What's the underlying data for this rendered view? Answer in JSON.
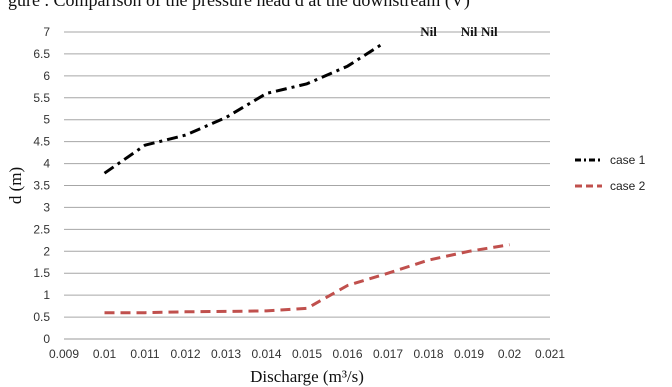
{
  "caption_fragment": "gure . Comparison of the pressure head d at the downstream (V)",
  "chart_data": {
    "type": "line",
    "xlabel": "Discharge (m³/s)",
    "ylabel": "d (m)",
    "xlim": [
      0.009,
      0.021
    ],
    "ylim": [
      0,
      7
    ],
    "x_ticks": [
      "0.009",
      "0.01",
      "0.011",
      "0.012",
      "0.013",
      "0.014",
      "0.015",
      "0.016",
      "0.017",
      "0.018",
      "0.019",
      "0.02",
      "0.021"
    ],
    "y_ticks": [
      "0",
      "0.5",
      "1",
      "1.5",
      "2",
      "2.5",
      "3",
      "3.5",
      "4",
      "4.5",
      "5",
      "5.5",
      "6",
      "6.5",
      "7"
    ],
    "grid": "horizontal",
    "legend_position": "right",
    "series": [
      {
        "name": "case 1",
        "color": "#000000",
        "style": "dash-dot",
        "x": [
          0.01,
          0.011,
          0.012,
          0.013,
          0.014,
          0.015,
          0.016,
          0.0169
        ],
        "y": [
          3.78,
          4.42,
          4.65,
          5.05,
          5.6,
          5.82,
          6.22,
          6.75
        ]
      },
      {
        "name": "case 2",
        "color": "#c0504d",
        "style": "dash",
        "x": [
          0.01,
          0.011,
          0.012,
          0.013,
          0.014,
          0.015,
          0.016,
          0.017,
          0.018,
          0.019,
          0.02
        ],
        "y": [
          0.6,
          0.6,
          0.62,
          0.63,
          0.64,
          0.7,
          1.22,
          1.5,
          1.8,
          2.0,
          2.15
        ]
      }
    ],
    "annotations": [
      {
        "text": "Nil",
        "x": 0.018,
        "y": 7.0
      },
      {
        "text": "Nil",
        "x": 0.019,
        "y": 7.0
      },
      {
        "text": "Nil",
        "x": 0.0195,
        "y": 7.0
      }
    ]
  }
}
